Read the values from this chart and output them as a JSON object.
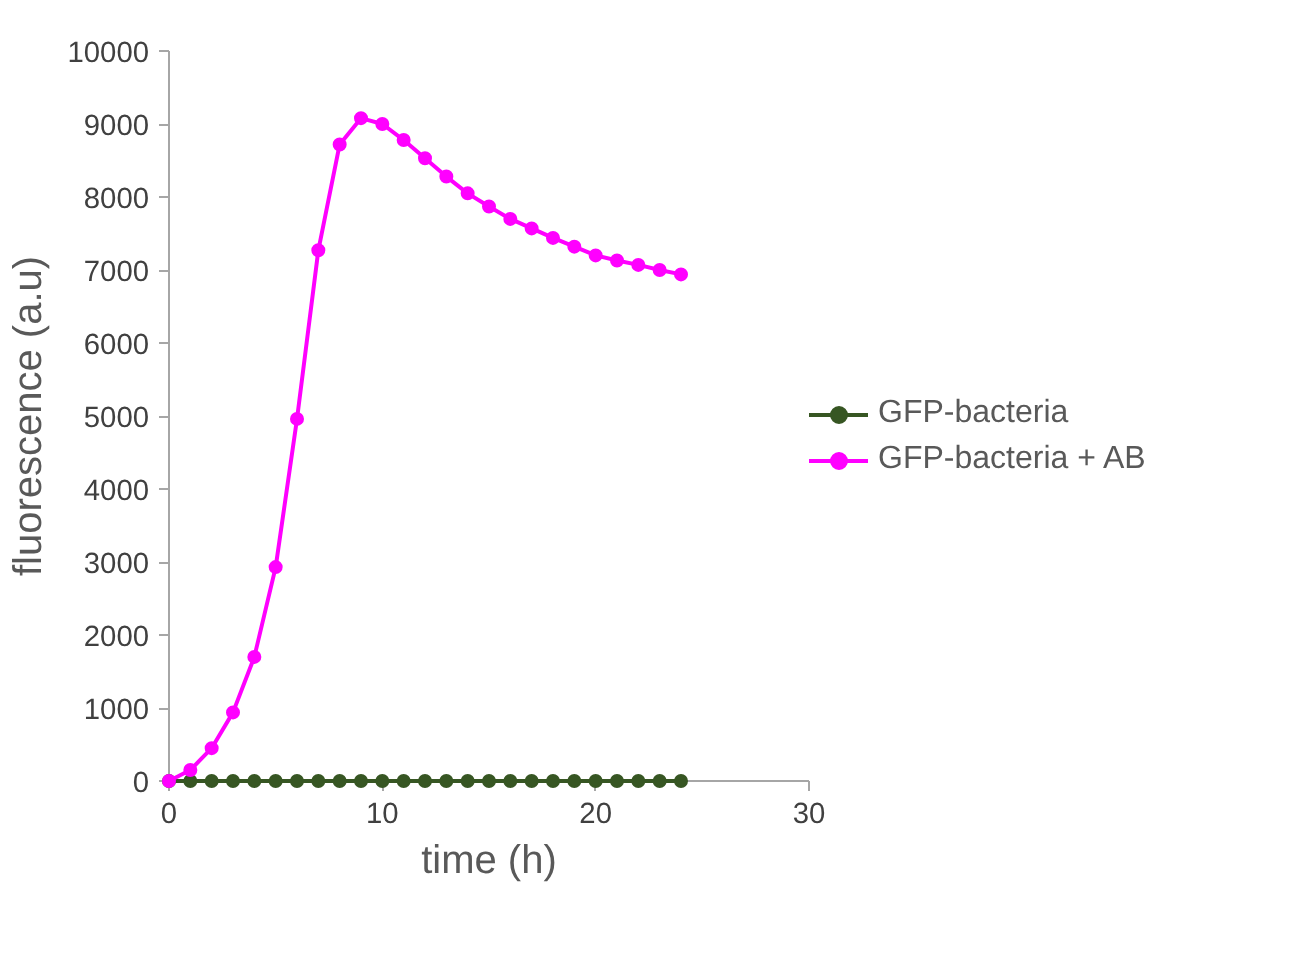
{
  "chart_data": {
    "type": "line",
    "xlabel": "time (h)",
    "ylabel": "fluorescence (a.u)",
    "x": [
      0,
      1,
      2,
      3,
      4,
      5,
      6,
      7,
      8,
      9,
      10,
      11,
      12,
      13,
      14,
      15,
      16,
      17,
      18,
      19,
      20,
      21,
      22,
      23,
      24
    ],
    "series": [
      {
        "name": "GFP-bacteria",
        "color": "#375623",
        "values": [
          0,
          0,
          0,
          0,
          0,
          0,
          0,
          0,
          0,
          0,
          0,
          0,
          0,
          0,
          0,
          0,
          0,
          0,
          0,
          0,
          0,
          0,
          0,
          0,
          0
        ]
      },
      {
        "name": "GFP-bacteria + AB",
        "color": "#ff00ff",
        "values": [
          0,
          150,
          450,
          940,
          1700,
          2930,
          4960,
          7270,
          8720,
          9080,
          9000,
          8780,
          8530,
          8280,
          8050,
          7870,
          7700,
          7570,
          7440,
          7320,
          7200,
          7130,
          7070,
          7000,
          6940
        ]
      }
    ],
    "xlim": [
      0,
      30
    ],
    "xticks": [
      0,
      10,
      20,
      30
    ],
    "ylim": [
      0,
      10000
    ],
    "yticks": [
      0,
      1000,
      2000,
      3000,
      4000,
      5000,
      6000,
      7000,
      8000,
      9000,
      10000
    ],
    "grid": false,
    "legend": "right",
    "marker": "circle",
    "line_style": "solid"
  }
}
